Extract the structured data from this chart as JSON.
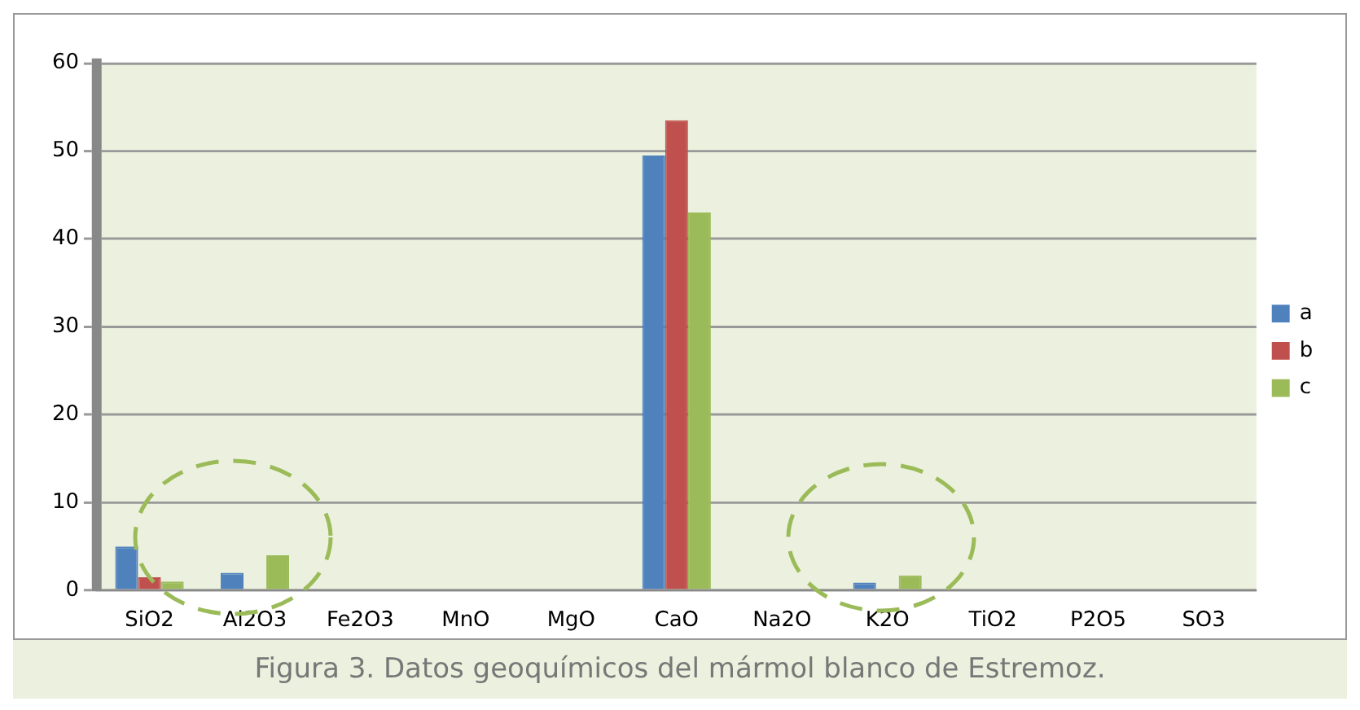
{
  "chart_data": {
    "type": "bar",
    "categories": [
      "SiO2",
      "Al2O3",
      "Fe2O3",
      "MnO",
      "MgO",
      "CaO",
      "Na2O",
      "K2O",
      "TiO2",
      "P2O5",
      "SO3"
    ],
    "series": [
      {
        "name": "a",
        "color": "#4f81bd",
        "values": [
          5,
          2,
          0,
          0,
          0,
          49.5,
          0,
          0.9,
          0,
          0,
          0
        ]
      },
      {
        "name": "b",
        "color": "#c0504d",
        "values": [
          1.5,
          0,
          0,
          0,
          0,
          53.5,
          0,
          0,
          0,
          0,
          0
        ]
      },
      {
        "name": "c",
        "color": "#9bbb59",
        "values": [
          1,
          4,
          0,
          0,
          0,
          43,
          0,
          1.7,
          0,
          0,
          0
        ]
      }
    ],
    "ylim": [
      0,
      60
    ],
    "yticks": [
      0,
      10,
      20,
      30,
      40,
      50,
      60
    ],
    "grid": "y",
    "legend": "right",
    "annotations": [
      "Figura 3. Datos geoquímicos del mármol blanco de Estremoz."
    ]
  }
}
